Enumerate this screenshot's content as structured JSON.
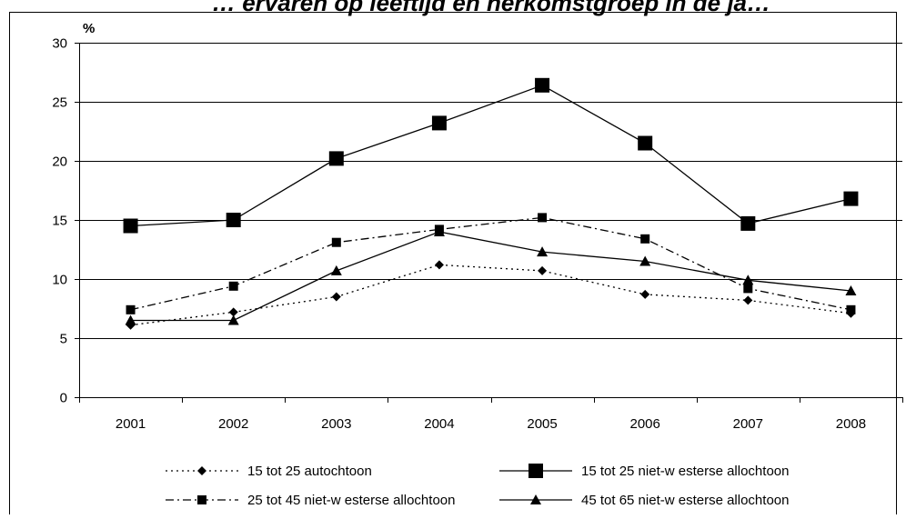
{
  "chart_data": {
    "type": "line",
    "title": "… ervaren op leeftijd en herkomstgroep in de ja…",
    "ylabel": "%",
    "xlabel": "",
    "ylim": [
      0,
      30
    ],
    "yticks": [
      "0",
      "5",
      "10",
      "15",
      "20",
      "25",
      "30"
    ],
    "categories": [
      "2001",
      "2002",
      "2003",
      "2004",
      "2005",
      "2006",
      "2007",
      "2008"
    ],
    "grid": true,
    "legend_position": "bottom",
    "series": [
      {
        "name": "15 tot 25 autochtoon",
        "marker": "diamond",
        "line": "dotted",
        "values": [
          6.1,
          7.2,
          8.5,
          11.2,
          10.7,
          8.7,
          8.2,
          7.1
        ]
      },
      {
        "name": "15 tot 25 niet-w esterse allochtoon",
        "marker": "square-large",
        "line": "solid",
        "values": [
          14.5,
          15.0,
          20.2,
          23.2,
          26.4,
          21.5,
          14.7,
          16.8
        ]
      },
      {
        "name": "25 tot 45 niet-w esterse allochtoon",
        "marker": "square",
        "line": "dashdot",
        "values": [
          7.4,
          9.4,
          13.1,
          14.2,
          15.2,
          13.4,
          9.2,
          7.4
        ]
      },
      {
        "name": "45 tot 65 niet-w esterse allochtoon",
        "marker": "triangle",
        "line": "solid",
        "values": [
          6.5,
          6.5,
          10.7,
          14.0,
          12.3,
          11.5,
          9.9,
          9.0
        ]
      }
    ],
    "colors": {
      "line": "#000000",
      "grid": "#000000",
      "frame": "#000000"
    }
  }
}
